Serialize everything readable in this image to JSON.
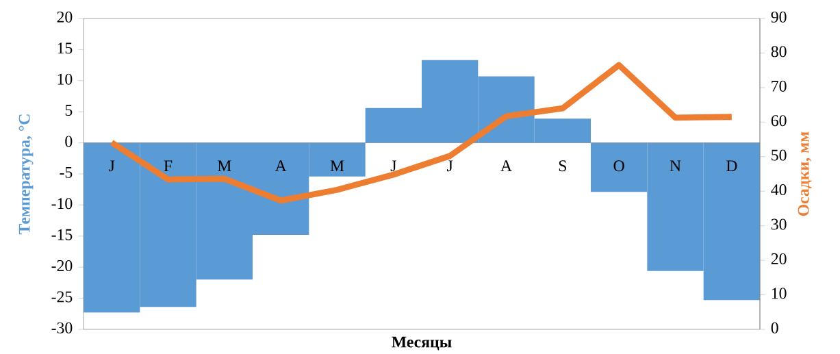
{
  "chart_data": {
    "type": "bar",
    "categories": [
      "J",
      "F",
      "M",
      "A",
      "M",
      "J",
      "J",
      "A",
      "S",
      "O",
      "N",
      "D"
    ],
    "xlabel": "Месяцы",
    "ylabel": "Температура, °C",
    "y2label": "Осадки, мм",
    "ylim": [
      -30,
      20
    ],
    "yticks": [
      -30,
      -25,
      -20,
      -15,
      -10,
      -5,
      0,
      5,
      10,
      15,
      20
    ],
    "y2lim": [
      0,
      90
    ],
    "y2ticks": [
      0,
      10,
      20,
      30,
      40,
      50,
      60,
      70,
      80,
      90
    ],
    "series": [
      {
        "color": "#5b9bd5",
        "values": [
          -27.3,
          -26.4,
          -22.0,
          -14.8,
          -5.4,
          5.6,
          13.3,
          10.7,
          3.9,
          -7.9,
          -20.6,
          -25.3
        ]
      },
      {
        "type": "line",
        "axis": "y2",
        "color": "#ed7d31",
        "values": [
          54.1,
          43.4,
          43.6,
          37.3,
          40.4,
          44.8,
          50.2,
          61.7,
          64.0,
          76.5,
          61.3,
          61.5
        ]
      }
    ]
  }
}
